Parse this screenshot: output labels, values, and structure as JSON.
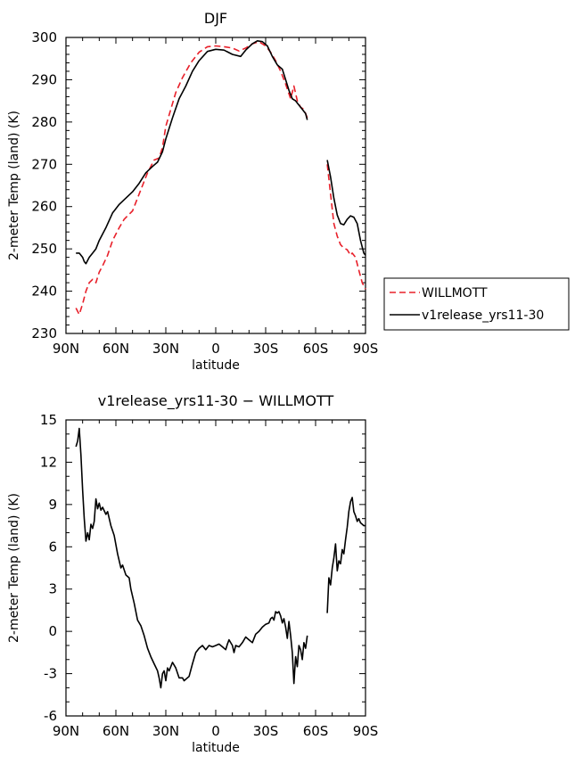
{
  "chart_data": [
    {
      "type": "line",
      "title": "DJF",
      "xlabel": "latitude",
      "ylabel": "2-meter Temp (land) (K)",
      "xlim": [
        90,
        -90
      ],
      "ylim": [
        230,
        300
      ],
      "x_tick_values": [
        90,
        60,
        30,
        0,
        -30,
        -60,
        -90
      ],
      "x_tick_labels": [
        "90N",
        "60N",
        "30N",
        "0",
        "30S",
        "60S",
        "90S"
      ],
      "y_ticks": [
        230,
        240,
        250,
        260,
        270,
        280,
        290,
        300
      ],
      "grid": false,
      "legend_position": "right",
      "series": [
        {
          "name": "WILLMOTT",
          "color": "#e8202a",
          "dash": "dashed",
          "segments": [
            [
              [
                84,
                236
              ],
              [
                82,
                234.5
              ],
              [
                80,
                237
              ],
              [
                78,
                240
              ],
              [
                76,
                242
              ],
              [
                74,
                242.8
              ],
              [
                72,
                242
              ],
              [
                70,
                244.5
              ],
              [
                68,
                246
              ],
              [
                65,
                248.5
              ],
              [
                62,
                252
              ],
              [
                58,
                255
              ],
              [
                55,
                257
              ],
              [
                50,
                259
              ],
              [
                47,
                262
              ],
              [
                44,
                265
              ],
              [
                41,
                268
              ],
              [
                37,
                271
              ],
              [
                34,
                271.5
              ],
              [
                32,
                274
              ],
              [
                30,
                279
              ],
              [
                27,
                283
              ],
              [
                24,
                287
              ],
              [
                20,
                290.5
              ],
              [
                15,
                294
              ],
              [
                10,
                296.5
              ],
              [
                5,
                297.8
              ],
              [
                0,
                298
              ],
              [
                -5,
                297.8
              ],
              [
                -10,
                297.5
              ],
              [
                -14,
                296.8
              ],
              [
                -18,
                297.5
              ],
              [
                -22,
                298.5
              ],
              [
                -26,
                299
              ],
              [
                -30,
                298
              ],
              [
                -33,
                296.5
              ],
              [
                -36,
                294.5
              ],
              [
                -39,
                292
              ],
              [
                -42,
                289
              ],
              [
                -45,
                285.5
              ],
              [
                -47,
                288.5
              ],
              [
                -49,
                285
              ],
              [
                -51,
                283.5
              ],
              [
                -53,
                283
              ],
              [
                -55,
                281
              ]
            ],
            [
              [
                -67,
                270
              ],
              [
                -69,
                263
              ],
              [
                -71,
                256
              ],
              [
                -73,
                253
              ],
              [
                -75,
                251
              ],
              [
                -77,
                250.2
              ],
              [
                -79,
                249.8
              ],
              [
                -81,
                248.5
              ],
              [
                -82,
                249
              ],
              [
                -84,
                248
              ],
              [
                -86,
                245
              ],
              [
                -88,
                242
              ],
              [
                -90,
                240.5
              ]
            ]
          ]
        },
        {
          "name": "v1release_yrs11-30",
          "color": "#000000",
          "dash": "solid",
          "segments": [
            [
              [
                84,
                249
              ],
              [
                82,
                249
              ],
              [
                80,
                248
              ],
              [
                79,
                247
              ],
              [
                78,
                246.5
              ],
              [
                76,
                248
              ],
              [
                74,
                249
              ],
              [
                72,
                250
              ],
              [
                70,
                252
              ],
              [
                66,
                255
              ],
              [
                62,
                258.5
              ],
              [
                58,
                260.5
              ],
              [
                54,
                262
              ],
              [
                50,
                263.5
              ],
              [
                46,
                265.5
              ],
              [
                42,
                268
              ],
              [
                38,
                269.5
              ],
              [
                35,
                270.5
              ],
              [
                32,
                273
              ],
              [
                30,
                276
              ],
              [
                26,
                281
              ],
              [
                22,
                285.5
              ],
              [
                18,
                288.5
              ],
              [
                14,
                292
              ],
              [
                10,
                294.5
              ],
              [
                5,
                296.7
              ],
              [
                0,
                297.2
              ],
              [
                -5,
                297
              ],
              [
                -10,
                296
              ],
              [
                -15,
                295.5
              ],
              [
                -18,
                297
              ],
              [
                -22,
                298.5
              ],
              [
                -25,
                299.2
              ],
              [
                -28,
                299
              ],
              [
                -31,
                298
              ],
              [
                -34,
                295.5
              ],
              [
                -37,
                293.5
              ],
              [
                -40,
                292.5
              ],
              [
                -42,
                290
              ],
              [
                -44,
                287.5
              ],
              [
                -46,
                285.5
              ],
              [
                -48,
                285
              ],
              [
                -50,
                284
              ],
              [
                -52,
                283
              ],
              [
                -54,
                282
              ],
              [
                -55,
                280.5
              ]
            ],
            [
              [
                -67,
                271
              ],
              [
                -69,
                267
              ],
              [
                -71,
                262
              ],
              [
                -73,
                258
              ],
              [
                -75,
                256
              ],
              [
                -77,
                255.7
              ],
              [
                -79,
                257
              ],
              [
                -81,
                257.8
              ],
              [
                -83,
                257.5
              ],
              [
                -85,
                256
              ],
              [
                -87,
                252
              ],
              [
                -89,
                249
              ],
              [
                -90,
                248.5
              ]
            ]
          ]
        }
      ]
    },
    {
      "type": "line",
      "title": "v1release_yrs11-30 − WILLMOTT",
      "xlabel": "latitude",
      "ylabel": "2-meter Temp (land) (K)",
      "xlim": [
        90,
        -90
      ],
      "ylim": [
        -6,
        15
      ],
      "x_tick_values": [
        90,
        60,
        30,
        0,
        -30,
        -60,
        -90
      ],
      "x_tick_labels": [
        "90N",
        "60N",
        "30N",
        "0",
        "30S",
        "60S",
        "90S"
      ],
      "y_ticks": [
        -6,
        -3,
        0,
        3,
        6,
        9,
        12,
        15
      ],
      "grid": false,
      "series": [
        {
          "color": "#000000",
          "dash": "solid",
          "segments": [
            [
              [
                84,
                13.1
              ],
              [
                83,
                13.5
              ],
              [
                82,
                14.4
              ],
              [
                81,
                12.5
              ],
              [
                80,
                10
              ],
              [
                79,
                8
              ],
              [
                78,
                6.4
              ],
              [
                77,
                7
              ],
              [
                76,
                6.5
              ],
              [
                75,
                7.6
              ],
              [
                74,
                7.3
              ],
              [
                73,
                7.8
              ],
              [
                72,
                9.4
              ],
              [
                71,
                8.7
              ],
              [
                70,
                9.1
              ],
              [
                69,
                8.6
              ],
              [
                68,
                8.8
              ],
              [
                66,
                8.3
              ],
              [
                65,
                8.5
              ],
              [
                63,
                7.5
              ],
              [
                61,
                6.8
              ],
              [
                59,
                5.5
              ],
              [
                57,
                4.5
              ],
              [
                56,
                4.7
              ],
              [
                54,
                4
              ],
              [
                52,
                3.8
              ],
              [
                51,
                3
              ],
              [
                49,
                2
              ],
              [
                47,
                0.8
              ],
              [
                45,
                0.4
              ],
              [
                43,
                -0.3
              ],
              [
                41,
                -1.2
              ],
              [
                39,
                -1.8
              ],
              [
                37,
                -2.3
              ],
              [
                35,
                -2.8
              ],
              [
                34,
                -3.3
              ],
              [
                33,
                -4
              ],
              [
                32,
                -3
              ],
              [
                31,
                -2.8
              ],
              [
                30,
                -3.5
              ],
              [
                29,
                -2.6
              ],
              [
                28,
                -2.8
              ],
              [
                26,
                -2.2
              ],
              [
                24,
                -2.6
              ],
              [
                22,
                -3.3
              ],
              [
                20,
                -3.3
              ],
              [
                19,
                -3.5
              ],
              [
                18,
                -3.4
              ],
              [
                16,
                -3.2
              ],
              [
                14,
                -2.3
              ],
              [
                12,
                -1.5
              ],
              [
                10,
                -1.2
              ],
              [
                8,
                -1
              ],
              [
                6,
                -1.3
              ],
              [
                4,
                -1
              ],
              [
                2,
                -1.1
              ],
              [
                0,
                -1
              ],
              [
                -2,
                -0.9
              ],
              [
                -4,
                -1.1
              ],
              [
                -6,
                -1.3
              ],
              [
                -7,
                -0.9
              ],
              [
                -8,
                -0.6
              ],
              [
                -10,
                -1
              ],
              [
                -11,
                -1.5
              ],
              [
                -12,
                -1
              ],
              [
                -14,
                -1.1
              ],
              [
                -16,
                -0.8
              ],
              [
                -18,
                -0.4
              ],
              [
                -20,
                -0.6
              ],
              [
                -22,
                -0.8
              ],
              [
                -24,
                -0.2
              ],
              [
                -26,
                0
              ],
              [
                -28,
                0.3
              ],
              [
                -30,
                0.5
              ],
              [
                -32,
                0.6
              ],
              [
                -33,
                0.9
              ],
              [
                -34,
                1
              ],
              [
                -35,
                0.8
              ],
              [
                -36,
                1.4
              ],
              [
                -37,
                1.3
              ],
              [
                -38,
                1.4
              ],
              [
                -39,
                1.1
              ],
              [
                -40,
                0.6
              ],
              [
                -41,
                0.9
              ],
              [
                -42,
                0.3
              ],
              [
                -43,
                -0.5
              ],
              [
                -44,
                0.7
              ],
              [
                -45,
                -0.3
              ],
              [
                -46,
                -1.5
              ],
              [
                -47,
                -3.7
              ],
              [
                -48,
                -1.8
              ],
              [
                -49,
                -2.5
              ],
              [
                -50,
                -1
              ],
              [
                -51,
                -1.3
              ],
              [
                -52,
                -2
              ],
              [
                -53,
                -0.8
              ],
              [
                -54,
                -1.2
              ],
              [
                -55,
                -0.3
              ]
            ],
            [
              [
                -67,
                1.3
              ],
              [
                -68,
                3.8
              ],
              [
                -69,
                3.3
              ],
              [
                -70,
                4.5
              ],
              [
                -71,
                5.2
              ],
              [
                -72,
                6.2
              ],
              [
                -73,
                4.3
              ],
              [
                -74,
                5
              ],
              [
                -75,
                4.8
              ],
              [
                -76,
                5.8
              ],
              [
                -77,
                5.5
              ],
              [
                -78,
                6.5
              ],
              [
                -79,
                7.4
              ],
              [
                -80,
                8.5
              ],
              [
                -81,
                9.2
              ],
              [
                -82,
                9.5
              ],
              [
                -83,
                8.5
              ],
              [
                -84,
                8.2
              ],
              [
                -85,
                7.8
              ],
              [
                -86,
                8
              ],
              [
                -87,
                7.7
              ],
              [
                -88,
                7.6
              ],
              [
                -89,
                7.5
              ],
              [
                -90,
                7.5
              ]
            ]
          ]
        }
      ]
    }
  ]
}
